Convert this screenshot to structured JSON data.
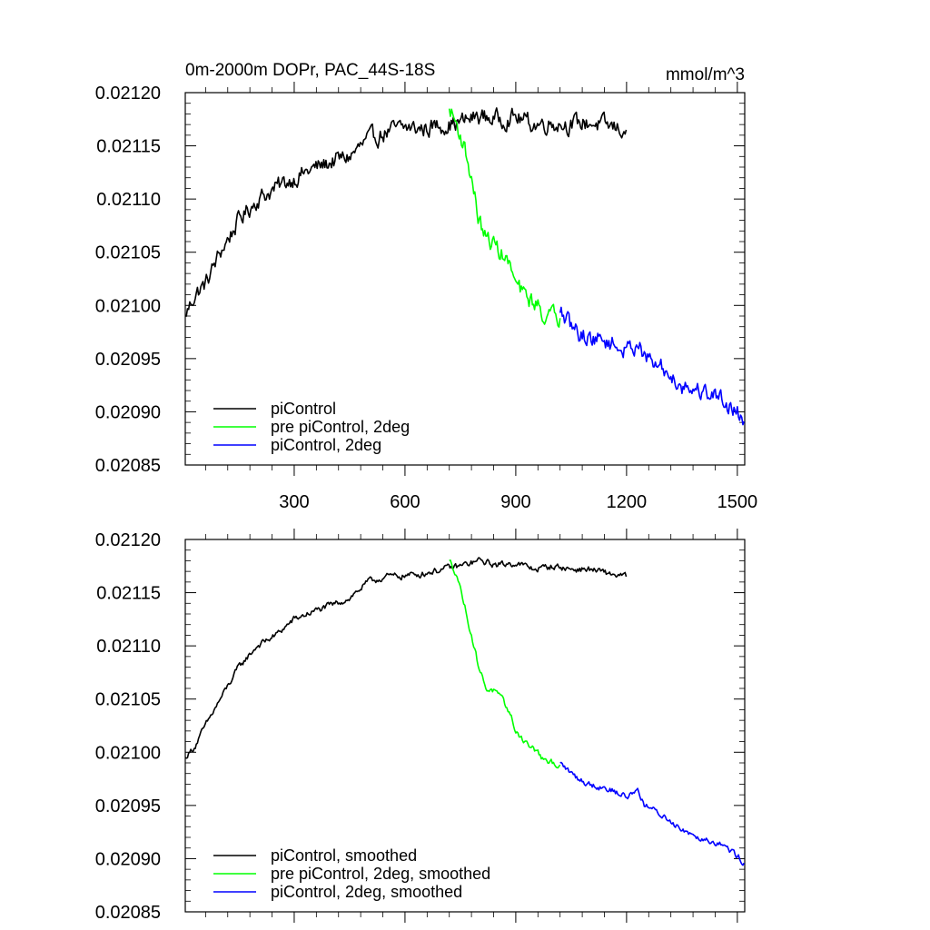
{
  "figure": {
    "title_left": "0m-2000m DOPr, PAC_44S-18S",
    "title_right": "mmol/m^3"
  },
  "chart_data": [
    {
      "type": "line",
      "panel": "top",
      "xlim": [
        5,
        1520
      ],
      "ylim": [
        0.02085,
        0.0212
      ],
      "x_ticks": [
        300,
        600,
        900,
        1200,
        1500
      ],
      "x_tick_labels": [
        "300",
        "600",
        "900",
        "1200",
        "1500"
      ],
      "y_ticks": [
        0.02085,
        0.0209,
        0.02095,
        0.021,
        0.02105,
        0.0211,
        0.02115,
        0.0212
      ],
      "y_tick_labels": [
        "0.02085",
        "0.02090",
        "0.02095",
        "0.02100",
        "0.02105",
        "0.02110",
        "0.02115",
        "0.02120"
      ],
      "legend_position": "bottom-left",
      "noise": 7e-06,
      "series": [
        {
          "name": "piControl",
          "color": "#000000",
          "x": [
            5,
            30,
            60,
            100,
            150,
            200,
            250,
            300,
            350,
            400,
            450,
            500,
            550,
            600,
            650,
            700,
            750,
            800,
            850,
            900,
            950,
            1000,
            1050,
            1100,
            1150,
            1200
          ],
          "y": [
            0.02099,
            0.02101,
            0.02102,
            0.02105,
            0.02108,
            0.0211,
            0.02111,
            0.02112,
            0.021128,
            0.021135,
            0.02114,
            0.021155,
            0.021163,
            0.021167,
            0.021166,
            0.02117,
            0.021172,
            0.021178,
            0.021175,
            0.021177,
            0.02117,
            0.021172,
            0.02117,
            0.021172,
            0.021168,
            0.021165
          ]
        },
        {
          "name": "pre piControl, 2deg",
          "color": "#00ff00",
          "x": [
            720,
            740,
            760,
            780,
            800,
            820,
            840,
            860,
            880,
            900,
            920,
            940,
            960,
            980,
            1000,
            1020
          ],
          "y": [
            0.021185,
            0.02117,
            0.02115,
            0.02112,
            0.02108,
            0.021062,
            0.021058,
            0.02105,
            0.02104,
            0.02102,
            0.02101,
            0.021005,
            0.021,
            0.02099,
            0.02099,
            0.020988
          ]
        },
        {
          "name": "piControl, 2deg",
          "color": "#0000ff",
          "x": [
            1020,
            1050,
            1080,
            1100,
            1150,
            1200,
            1230,
            1250,
            1300,
            1350,
            1400,
            1450,
            1500,
            1520
          ],
          "y": [
            0.020993,
            0.02098,
            0.020972,
            0.02097,
            0.020966,
            0.020957,
            0.020966,
            0.02095,
            0.02094,
            0.020925,
            0.02092,
            0.020915,
            0.0209,
            0.02089
          ]
        }
      ]
    },
    {
      "type": "line",
      "panel": "bottom",
      "xlim": [
        5,
        1520
      ],
      "ylim": [
        0.02085,
        0.0212
      ],
      "x_ticks": [
        300,
        600,
        900,
        1200,
        1500
      ],
      "x_tick_labels": [],
      "y_ticks": [
        0.02085,
        0.0209,
        0.02095,
        0.021,
        0.02105,
        0.0211,
        0.02115,
        0.0212
      ],
      "y_tick_labels": [
        "0.02085",
        "0.02090",
        "0.02095",
        "0.02100",
        "0.02105",
        "0.02110",
        "0.02115",
        "0.02120"
      ],
      "legend_position": "bottom-left",
      "noise": 2.5e-06,
      "series": [
        {
          "name": "piControl, smoothed",
          "color": "#000000",
          "x": [
            5,
            30,
            60,
            100,
            150,
            200,
            250,
            300,
            350,
            400,
            450,
            500,
            550,
            600,
            650,
            700,
            750,
            800,
            850,
            900,
            950,
            1000,
            1050,
            1100,
            1150,
            1200
          ],
          "y": [
            0.020995,
            0.021005,
            0.021025,
            0.02105,
            0.02108,
            0.0211,
            0.02111,
            0.021125,
            0.021132,
            0.021138,
            0.021145,
            0.02116,
            0.021165,
            0.021166,
            0.021168,
            0.021172,
            0.021175,
            0.02118,
            0.021176,
            0.021178,
            0.021172,
            0.021175,
            0.021172,
            0.021172,
            0.021168,
            0.021165
          ]
        },
        {
          "name": "pre piControl, 2deg, smoothed",
          "color": "#00ff00",
          "x": [
            720,
            740,
            760,
            780,
            800,
            820,
            840,
            860,
            880,
            900,
            920,
            940,
            960,
            980,
            1000,
            1020
          ],
          "y": [
            0.02118,
            0.021168,
            0.02114,
            0.02111,
            0.02108,
            0.02106,
            0.021058,
            0.02105,
            0.02104,
            0.02102,
            0.021012,
            0.021005,
            0.021,
            0.02099,
            0.02099,
            0.020988
          ]
        },
        {
          "name": "piControl, 2deg, smoothed",
          "color": "#0000ff",
          "x": [
            1020,
            1050,
            1080,
            1100,
            1150,
            1200,
            1230,
            1250,
            1300,
            1350,
            1400,
            1450,
            1500,
            1520
          ],
          "y": [
            0.02099,
            0.02098,
            0.020973,
            0.02097,
            0.020966,
            0.020958,
            0.020965,
            0.02095,
            0.02094,
            0.020928,
            0.02092,
            0.020915,
            0.020903,
            0.020895
          ]
        }
      ]
    }
  ]
}
